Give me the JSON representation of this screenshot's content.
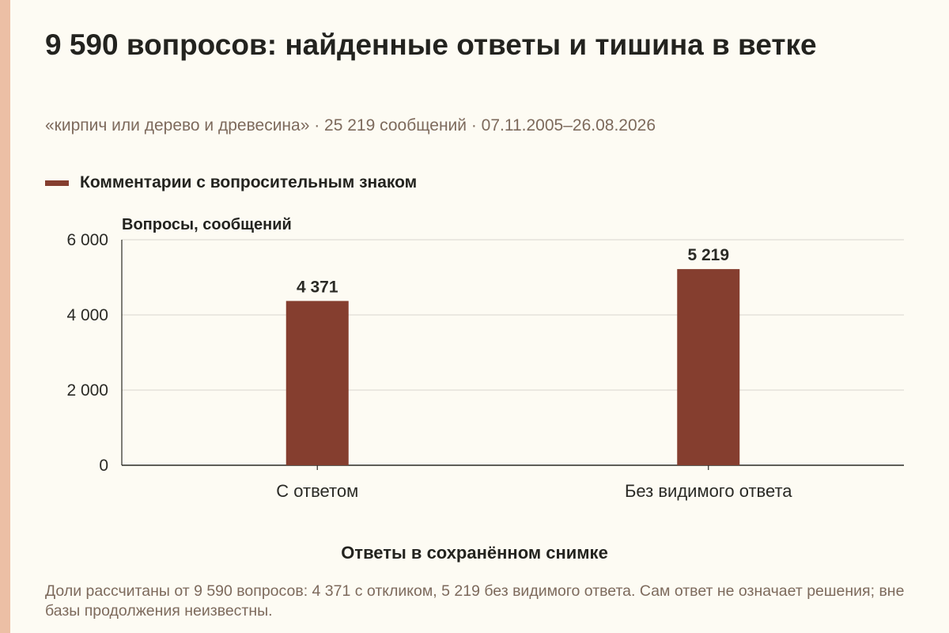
{
  "title": "9 590 вопросов: найденные ответы и тишина в ветке",
  "subtitle": "«кирпич или дерево и древесина» · 25 219 сообщений · 07.11.2005–26.08.2026",
  "footnote": "Доли рассчитаны от 9 590 вопросов: 4 371 с откликом, 5 219 без видимого ответа. Сам ответ не означает решения; вне базы продолжения неизвестны.",
  "colors": {
    "background": "#fdfbf3",
    "accent_strip": "#ecbfa5",
    "bar": "#853e2f",
    "grid": "#d9d6cf",
    "axis": "#2a2a25",
    "muted_text": "#7d6a5c"
  },
  "chart_data": {
    "type": "bar",
    "categories": [
      "С ответом",
      "Без видимого ответа"
    ],
    "series": [
      {
        "name": "Комментарии с вопросительным знаком",
        "values": [
          4371,
          5219
        ],
        "value_labels": [
          "4 371",
          "5 219"
        ]
      }
    ],
    "ylabel": "Вопросы, сообщений",
    "xlabel": "Ответы в сохранённом снимке",
    "ylim": [
      0,
      6000
    ],
    "yticks": [
      0,
      2000,
      4000,
      6000
    ],
    "ytick_labels": [
      "0",
      "2 000",
      "4 000",
      "6 000"
    ],
    "grid": true,
    "legend_position": "top-left"
  }
}
